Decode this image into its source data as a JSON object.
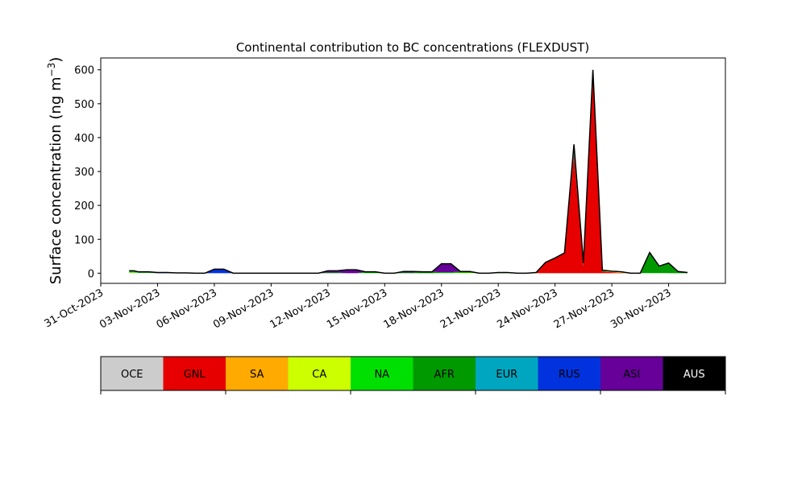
{
  "chart_data": {
    "type": "area",
    "title": "Continental contribution to BC concentrations (FLEXDUST)",
    "xlabel": "",
    "ylabel": "Surface concentration (ng m",
    "ylabel_sup": "−3",
    "ylabel_close": ")",
    "xlim": [
      "2023-10-31",
      "2023-12-03"
    ],
    "ylim": [
      -30,
      635
    ],
    "yticks": [
      0,
      100,
      200,
      300,
      400,
      500,
      600
    ],
    "xticks": [
      "31-Oct-2023",
      "03-Nov-2023",
      "06-Nov-2023",
      "09-Nov-2023",
      "12-Nov-2023",
      "15-Nov-2023",
      "18-Nov-2023",
      "21-Nov-2023",
      "24-Nov-2023",
      "27-Nov-2023",
      "30-Nov-2023"
    ],
    "grid": false,
    "x": [
      "2023-11-01",
      "2023-11-01",
      "2023-11-02",
      "2023-11-02",
      "2023-11-03",
      "2023-11-03",
      "2023-11-04",
      "2023-11-04",
      "2023-11-05",
      "2023-11-05",
      "2023-11-06",
      "2023-11-06",
      "2023-11-07",
      "2023-11-07",
      "2023-11-08",
      "2023-11-08",
      "2023-11-09",
      "2023-11-09",
      "2023-11-10",
      "2023-11-10",
      "2023-11-11",
      "2023-11-11",
      "2023-11-12",
      "2023-11-12",
      "2023-11-13",
      "2023-11-13",
      "2023-11-14",
      "2023-11-14",
      "2023-11-15",
      "2023-11-15",
      "2023-11-16",
      "2023-11-16",
      "2023-11-17",
      "2023-11-17",
      "2023-11-18",
      "2023-11-18",
      "2023-11-19",
      "2023-11-19",
      "2023-11-20",
      "2023-11-20",
      "2023-11-21",
      "2023-11-21",
      "2023-11-22",
      "2023-11-22",
      "2023-11-23",
      "2023-11-23",
      "2023-11-24",
      "2023-11-24",
      "2023-11-25",
      "2023-11-25",
      "2023-11-26",
      "2023-11-26",
      "2023-11-27",
      "2023-11-27",
      "2023-11-28",
      "2023-11-28",
      "2023-11-29",
      "2023-11-29",
      "2023-11-30",
      "2023-11-30",
      "2023-12-01"
    ],
    "x_hours": [
      12,
      18,
      0,
      12,
      0,
      12,
      0,
      12,
      0,
      12,
      0,
      12,
      0,
      12,
      0,
      12,
      0,
      12,
      0,
      12,
      0,
      12,
      0,
      12,
      0,
      12,
      0,
      12,
      0,
      12,
      0,
      12,
      0,
      12,
      0,
      12,
      0,
      12,
      0,
      12,
      0,
      12,
      0,
      12,
      0,
      12,
      0,
      12,
      0,
      12,
      0,
      12,
      0,
      12,
      0,
      12,
      0,
      12,
      0,
      12,
      0
    ],
    "series": [
      {
        "name": "OCE",
        "color": "#cccccc",
        "values": [
          1,
          1,
          1,
          1,
          0,
          0,
          0,
          0,
          0,
          0,
          0,
          0,
          0,
          0,
          0,
          0,
          0,
          0,
          0,
          0,
          0,
          0,
          0,
          0,
          0,
          0,
          0,
          0,
          0,
          0,
          0,
          0,
          0,
          0,
          0,
          0,
          0,
          0,
          0,
          0,
          0,
          0,
          0,
          0,
          0,
          0,
          0,
          0,
          0,
          0,
          0,
          0,
          0,
          0,
          0,
          0,
          0,
          0,
          0,
          0,
          0
        ]
      },
      {
        "name": "GNL",
        "color": "#e60000",
        "values": [
          0,
          0,
          0,
          0,
          0,
          0,
          0,
          0,
          0,
          0,
          0,
          0,
          0,
          0,
          0,
          0,
          0,
          0,
          0,
          0,
          0,
          0,
          0,
          0,
          0,
          0,
          0,
          0,
          0,
          0,
          0,
          0,
          0,
          0,
          0,
          0,
          0,
          0,
          0,
          0,
          0,
          0,
          0,
          0,
          0,
          30,
          45,
          60,
          350,
          20,
          590,
          5,
          3,
          1,
          0,
          0,
          0,
          0,
          0,
          0,
          0
        ]
      },
      {
        "name": "SA",
        "color": "#ffaa00",
        "values": [
          0,
          0,
          0,
          0,
          0,
          0,
          0,
          0,
          0,
          0,
          0,
          0,
          0,
          0,
          0,
          0,
          0,
          0,
          0,
          0,
          0,
          0,
          0,
          0,
          0,
          0,
          0,
          0,
          0,
          0,
          0,
          0,
          0,
          0,
          0,
          0,
          0,
          0,
          0,
          0,
          0,
          0,
          0,
          0,
          0,
          0,
          0,
          0,
          0,
          0,
          0,
          0,
          1,
          1,
          0,
          0,
          0,
          0,
          0,
          0,
          0
        ]
      },
      {
        "name": "CA",
        "color": "#ccff00",
        "values": [
          1,
          1,
          0,
          0,
          0,
          0,
          0,
          0,
          0,
          0,
          0,
          0,
          0,
          0,
          0,
          0,
          0,
          0,
          0,
          0,
          0,
          0,
          0,
          0,
          0,
          0,
          0,
          0,
          0,
          0,
          0,
          0,
          0,
          0,
          0,
          0,
          1,
          1,
          0,
          0,
          0,
          0,
          0,
          0,
          0,
          0,
          0,
          0,
          0,
          0,
          0,
          0,
          1,
          1,
          0,
          0,
          0,
          0,
          0,
          0,
          0
        ]
      },
      {
        "name": "NA",
        "color": "#00e000",
        "values": [
          2,
          2,
          1,
          1,
          0,
          0,
          0,
          0,
          0,
          0,
          0,
          0,
          0,
          0,
          0,
          0,
          0,
          0,
          0,
          0,
          0,
          0,
          0,
          0,
          0,
          0,
          1,
          1,
          0,
          0,
          0,
          0,
          0,
          0,
          1,
          1,
          1,
          1,
          0,
          0,
          0,
          0,
          0,
          0,
          0,
          0,
          0,
          0,
          0,
          0,
          0,
          0,
          0,
          0,
          0,
          0,
          1,
          1,
          0,
          0,
          0
        ]
      },
      {
        "name": "AFR",
        "color": "#009900",
        "values": [
          2,
          2,
          1,
          1,
          0,
          0,
          0,
          0,
          0,
          0,
          0,
          0,
          0,
          0,
          0,
          0,
          0,
          0,
          0,
          0,
          0,
          0,
          2,
          2,
          0,
          0,
          3,
          3,
          0,
          0,
          2,
          2,
          4,
          4,
          2,
          2,
          3,
          3,
          0,
          0,
          2,
          2,
          0,
          0,
          2,
          2,
          0,
          0,
          5,
          5,
          5,
          2,
          1,
          1,
          0,
          0,
          60,
          20,
          30,
          5,
          2
        ]
      },
      {
        "name": "EUR",
        "color": "#00a6bf",
        "values": [
          0,
          0,
          0,
          0,
          0,
          0,
          0,
          0,
          0,
          0,
          0,
          0,
          0,
          0,
          0,
          0,
          0,
          0,
          0,
          0,
          0,
          0,
          0,
          0,
          0,
          0,
          0,
          0,
          0,
          0,
          0,
          0,
          0,
          0,
          0,
          0,
          0,
          0,
          0,
          0,
          0,
          0,
          0,
          0,
          0,
          0,
          0,
          0,
          25,
          5,
          5,
          2,
          0,
          0,
          0,
          0,
          0,
          0,
          0,
          0,
          0
        ]
      },
      {
        "name": "RUS",
        "color": "#0033dd",
        "values": [
          1,
          1,
          1,
          1,
          2,
          2,
          1,
          1,
          0,
          0,
          12,
          12,
          0,
          0,
          0,
          0,
          0,
          0,
          0,
          0,
          0,
          0,
          0,
          0,
          0,
          0,
          0,
          0,
          0,
          0,
          0,
          0,
          0,
          0,
          0,
          0,
          0,
          0,
          0,
          0,
          0,
          0,
          0,
          0,
          0,
          0,
          0,
          0,
          0,
          0,
          0,
          0,
          0,
          0,
          0,
          0,
          0,
          0,
          0,
          0,
          0
        ]
      },
      {
        "name": "ASI",
        "color": "#660099",
        "values": [
          0,
          0,
          0,
          0,
          0,
          0,
          0,
          0,
          0,
          0,
          0,
          0,
          0,
          0,
          0,
          0,
          0,
          0,
          0,
          0,
          0,
          0,
          5,
          5,
          10,
          10,
          0,
          0,
          0,
          0,
          3,
          3,
          0,
          0,
          25,
          25,
          0,
          0,
          0,
          0,
          0,
          0,
          0,
          0,
          0,
          0,
          0,
          0,
          0,
          0,
          0,
          0,
          0,
          0,
          0,
          0,
          0,
          0,
          0,
          0,
          0
        ]
      },
      {
        "name": "AUS",
        "color": "#000000",
        "values": [
          0,
          0,
          0,
          0,
          0,
          0,
          0,
          0,
          0,
          0,
          0,
          0,
          0,
          0,
          0,
          0,
          0,
          0,
          0,
          0,
          0,
          0,
          0,
          0,
          0,
          0,
          0,
          0,
          0,
          0,
          0,
          0,
          0,
          0,
          0,
          0,
          0,
          0,
          0,
          0,
          0,
          0,
          0,
          0,
          0,
          0,
          0,
          0,
          0,
          0,
          0,
          0,
          0,
          0,
          0,
          0,
          0,
          0,
          0,
          0,
          0
        ]
      }
    ]
  },
  "colorbar": {
    "labels": [
      "OCE",
      "GNL",
      "SA",
      "CA",
      "NA",
      "AFR",
      "EUR",
      "RUS",
      "ASI",
      "AUS"
    ],
    "colors": [
      "#cccccc",
      "#e60000",
      "#ffaa00",
      "#ccff00",
      "#00e000",
      "#009900",
      "#00a6bf",
      "#0033dd",
      "#660099",
      "#000000"
    ],
    "text_colors": [
      "#000000",
      "#000000",
      "#000000",
      "#000000",
      "#000000",
      "#000000",
      "#000000",
      "#000000",
      "#000000",
      "#ffffff"
    ]
  }
}
